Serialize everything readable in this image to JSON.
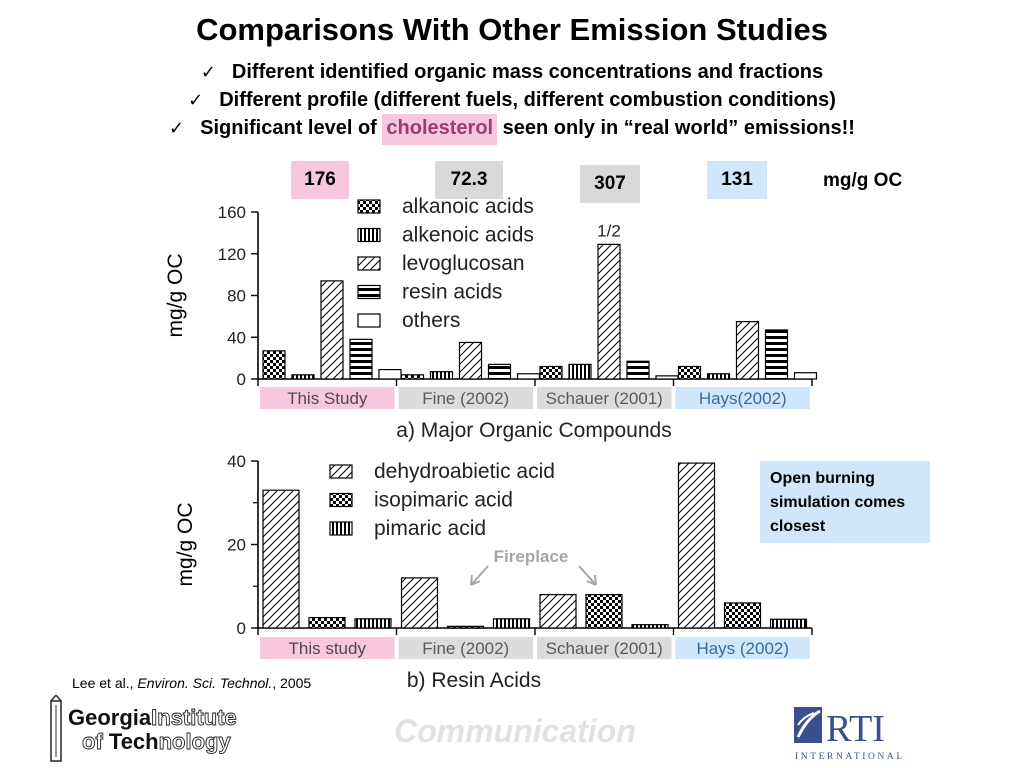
{
  "slide": {
    "title": "Comparisons With Other Emission Studies",
    "bullets": [
      {
        "pre": "Different identified organic mass concentrations and fractions",
        "hl": "",
        "post": ""
      },
      {
        "pre": "Different profile (different fuels, different combustion conditions)",
        "hl": "",
        "post": ""
      },
      {
        "pre": "Significant level of ",
        "hl": "cholesterol",
        "post": " seen only in “real world” emissions!!"
      }
    ],
    "check_icon": "checkmark-icon",
    "totals": [
      {
        "value": "176",
        "color": "#f7c8dd"
      },
      {
        "value": "72.3",
        "color": "#d9d9d9"
      },
      {
        "value": "307",
        "color": "#d9d9d9"
      },
      {
        "value": "131",
        "color": "#cfe6fb"
      }
    ],
    "totals_unit": "mg/g OC",
    "callout": "Open burning simulation comes closest",
    "citation": {
      "authors": "Lee et al., ",
      "journal": "Environ. Sci. Technol.",
      "year": ", 2005"
    },
    "footer_word": "Communication",
    "logos": {
      "gt": {
        "line1a": "Georgia",
        "line1b": "Institute",
        "line2a": "of ",
        "line2b": "Tech",
        "line2c": "nology"
      },
      "rti": {
        "name": "RTI",
        "sub": "INTERNATIONAL"
      }
    }
  },
  "chart_data": [
    {
      "type": "bar",
      "title": "a) Major Organic Compounds",
      "ylabel": "mg/g OC",
      "ylim": [
        0,
        160
      ],
      "yticks": [
        0,
        40,
        80,
        120,
        160
      ],
      "groups": [
        {
          "label": "This Study",
          "color": "#f7c8dd",
          "text_color": "#4a4a4a"
        },
        {
          "label": "Fine (2002)",
          "color": "#dcdcdc",
          "text_color": "#5a5a5a"
        },
        {
          "label": "Schauer (2001)",
          "color": "#dcdcdc",
          "text_color": "#5a5a5a"
        },
        {
          "label": "Hays(2002)",
          "color": "#cfe6fb",
          "text_color": "#3a6a9a"
        }
      ],
      "series": [
        {
          "name": "alkanoic acids",
          "pattern": "checker",
          "values": [
            27,
            4,
            12,
            12
          ]
        },
        {
          "name": "alkenoic acids",
          "pattern": "vlines",
          "values": [
            4,
            7,
            14,
            5
          ]
        },
        {
          "name": "levoglucosan",
          "pattern": "diag",
          "values": [
            94,
            35,
            129,
            55
          ]
        },
        {
          "name": "resin acids",
          "pattern": "hlines",
          "values": [
            38,
            14,
            17,
            47
          ]
        },
        {
          "name": "others",
          "pattern": "empty",
          "values": [
            9,
            5,
            3,
            6
          ]
        }
      ],
      "annotations": [
        {
          "text": "1/2",
          "group": 2,
          "series": 2
        }
      ],
      "legend": "top-left"
    },
    {
      "type": "bar",
      "title": "b) Resin Acids",
      "ylabel": "mg/g OC",
      "ylim": [
        0,
        40
      ],
      "yticks": [
        0,
        20,
        40
      ],
      "groups": [
        {
          "label": "This study",
          "color": "#f7c8dd",
          "text_color": "#4a4a4a"
        },
        {
          "label": "Fine (2002)",
          "color": "#dcdcdc",
          "text_color": "#5a5a5a"
        },
        {
          "label": "Schauer (2001)",
          "color": "#dcdcdc",
          "text_color": "#5a5a5a"
        },
        {
          "label": "Hays (2002)",
          "color": "#cfe6fb",
          "text_color": "#3a6a9a"
        }
      ],
      "series": [
        {
          "name": "dehydroabietic acid",
          "pattern": "diag",
          "values": [
            33,
            12,
            8,
            39.5
          ]
        },
        {
          "name": "isopimaric acid",
          "pattern": "checker",
          "values": [
            2.5,
            0.4,
            8,
            6
          ]
        },
        {
          "name": "pimaric acid",
          "pattern": "vlines",
          "values": [
            2.2,
            2.2,
            0.8,
            2.1
          ]
        }
      ],
      "annotations": [
        {
          "text": "Fireplace",
          "color": "#a6a6a6"
        }
      ],
      "legend": "top-center"
    }
  ]
}
